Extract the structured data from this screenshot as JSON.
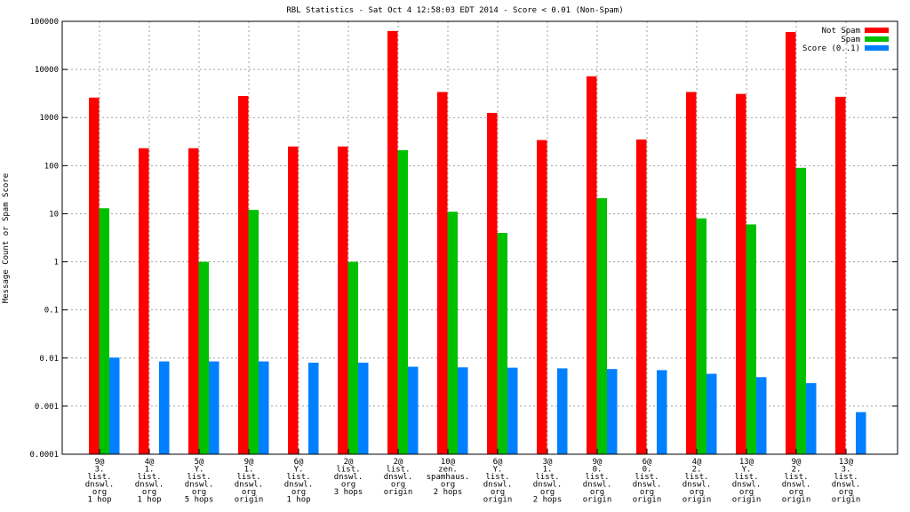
{
  "chart_data": {
    "type": "bar",
    "title": "RBL Statistics - Sat Oct  4 12:58:03 EDT 2014 - Score < 0.01 (Non-Spam)",
    "xlabel": "",
    "ylabel": "Message Count or Spam Score",
    "yscale": "log",
    "ylim": [
      0.0001,
      100000
    ],
    "yticks": [
      "0.0001",
      "0.001",
      "0.01",
      "0.1",
      "1",
      "10",
      "100",
      "1000",
      "10000",
      "100000"
    ],
    "grid": true,
    "legend_position": "top-right",
    "categories": [
      [
        "9@",
        "3.",
        "list.",
        "dnswl.",
        "org",
        "1 hop"
      ],
      [
        "4@",
        "1.",
        "list.",
        "dnswl.",
        "org",
        "1 hop"
      ],
      [
        "5@",
        "Y.",
        "list.",
        "dnswl.",
        "org",
        "5 hops"
      ],
      [
        "9@",
        "1.",
        "list.",
        "dnswl.",
        "org",
        "origin"
      ],
      [
        "6@",
        "Y.",
        "list.",
        "dnswl.",
        "org",
        "1 hop"
      ],
      [
        "2@",
        "list.",
        "dnswl.",
        "org",
        "3 hops"
      ],
      [
        "2@",
        "list.",
        "dnswl.",
        "org",
        "origin"
      ],
      [
        "10@",
        "zen.",
        "spamhaus.",
        "org",
        "2 hops"
      ],
      [
        "6@",
        "Y.",
        "list.",
        "dnswl.",
        "org",
        "origin"
      ],
      [
        "3@",
        "1.",
        "list.",
        "dnswl.",
        "org",
        "2 hops"
      ],
      [
        "9@",
        "0.",
        "list.",
        "dnswl.",
        "org",
        "origin"
      ],
      [
        "6@",
        "0.",
        "list.",
        "dnswl.",
        "org",
        "origin"
      ],
      [
        "4@",
        "2.",
        "list.",
        "dnswl.",
        "org",
        "origin"
      ],
      [
        "13@",
        "Y.",
        "list.",
        "dnswl.",
        "org",
        "origin"
      ],
      [
        "9@",
        "2.",
        "list.",
        "dnswl.",
        "org",
        "origin"
      ],
      [
        "13@",
        "3.",
        "list.",
        "dnswl.",
        "org",
        "origin"
      ]
    ],
    "series": [
      {
        "name": "Not Spam",
        "color": "#ff0000",
        "values": [
          2600,
          230,
          230,
          2800,
          250,
          250,
          63000,
          3400,
          1250,
          340,
          7200,
          350,
          3400,
          3100,
          60000,
          2700
        ]
      },
      {
        "name": "Spam",
        "color": "#00c000",
        "values": [
          13,
          null,
          1,
          12,
          null,
          1,
          210,
          11,
          4,
          null,
          21,
          null,
          8,
          6,
          90,
          null
        ]
      },
      {
        "name": "Score (0..1)",
        "color": "#0080ff",
        "values": [
          0.0102,
          0.0085,
          0.0085,
          0.0085,
          0.008,
          0.008,
          0.0066,
          0.0064,
          0.0063,
          0.0061,
          0.0059,
          0.0056,
          0.0047,
          0.004,
          0.003,
          0.00075
        ]
      }
    ]
  }
}
